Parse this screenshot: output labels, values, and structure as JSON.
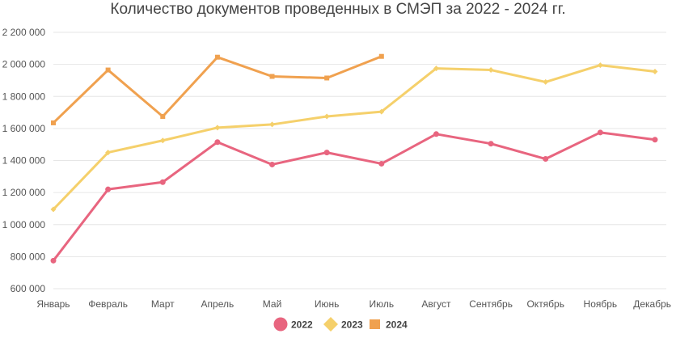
{
  "chart_data": {
    "type": "line",
    "title": "Количество документов проведенных в СМЭП за 2022 - 2024 гг.",
    "categories": [
      "Январь",
      "Февраль",
      "Март",
      "Апрель",
      "Май",
      "Июнь",
      "Июль",
      "Август",
      "Сентябрь",
      "Октябрь",
      "Ноябрь",
      "Декабрь"
    ],
    "ylim": [
      600000,
      2200000
    ],
    "yticks": [
      600000,
      800000,
      1000000,
      1200000,
      1400000,
      1600000,
      1800000,
      2000000,
      2200000
    ],
    "ytick_labels": [
      "600 000",
      "800 000",
      "1 000 000",
      "1 200 000",
      "1 400 000",
      "1 600 000",
      "1 800 000",
      "2 000 000",
      "2 200 000"
    ],
    "grid": true,
    "legend_position": "bottom",
    "series": [
      {
        "name": "2022",
        "color": "#e8657f",
        "marker": "circle",
        "values": [
          775000,
          1220000,
          1265000,
          1515000,
          1375000,
          1450000,
          1380000,
          1565000,
          1505000,
          1410000,
          1575000,
          1530000
        ]
      },
      {
        "name": "2023",
        "color": "#f5d06b",
        "marker": "diamond",
        "values": [
          1095000,
          1450000,
          1525000,
          1605000,
          1625000,
          1675000,
          1705000,
          1975000,
          1965000,
          1890000,
          1995000,
          1955000
        ]
      },
      {
        "name": "2024",
        "color": "#f0a14f",
        "marker": "square",
        "values": [
          1635000,
          1965000,
          1675000,
          2045000,
          1925000,
          1915000,
          2050000,
          null,
          null,
          null,
          null,
          null
        ]
      }
    ]
  }
}
